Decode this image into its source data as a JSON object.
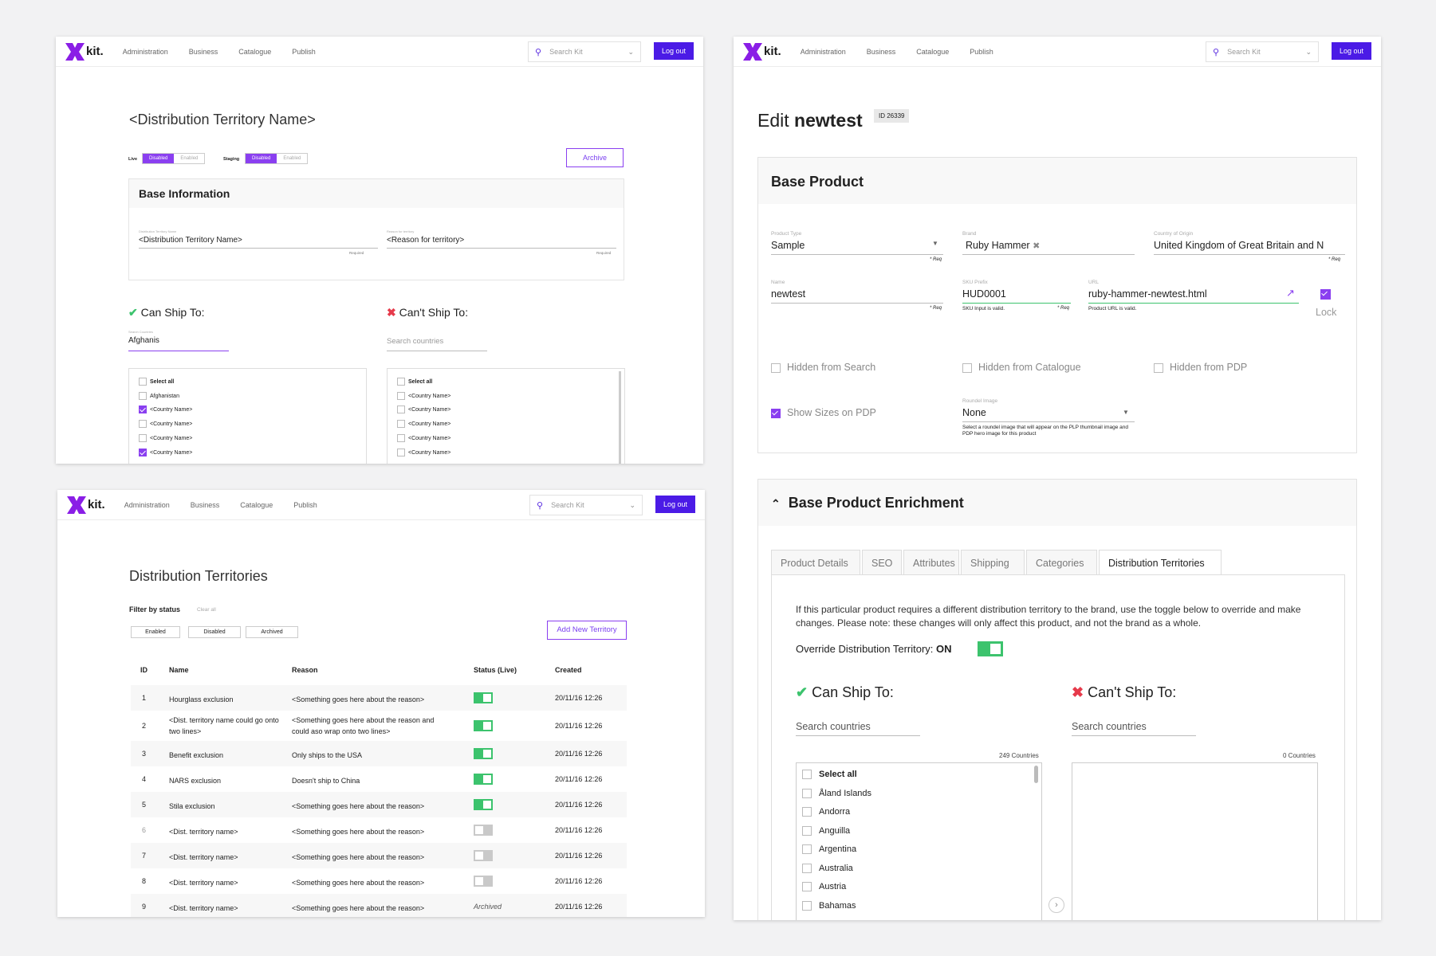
{
  "nav": {
    "logo": "kit.",
    "items": [
      "Administration",
      "Business",
      "Catalogue",
      "Publish"
    ],
    "search_placeholder": "Search Kit",
    "logout": "Log out"
  },
  "win1": {
    "title": "<Distribution Territory Name>",
    "live_label": "Live",
    "staging_label": "Staging",
    "disabled": "Disabled",
    "enabled": "Enabled",
    "archive_button": "Archive",
    "section_title": "Base Information",
    "field1_label": "Distribution Territory Name",
    "field1_value": "<Distribution Territory Name>",
    "field2_label": "Reason for territory",
    "field2_value": "<Reason for territory>",
    "required": "Required",
    "can_ship": "Can Ship To:",
    "cant_ship": "Can't Ship To:",
    "search_label": "Search Countries",
    "search_value": "Afghanis",
    "search_placeholder": "Search countries",
    "left_list": [
      {
        "label": "Select all",
        "checked": false
      },
      {
        "label": "Afghanistan",
        "checked": false
      },
      {
        "label": "<Country Name>",
        "checked": true
      },
      {
        "label": "<Country Name>",
        "checked": false
      },
      {
        "label": "<Country Name>",
        "checked": false
      },
      {
        "label": "<Country Name>",
        "checked": true
      }
    ],
    "right_list": [
      {
        "label": "Select all",
        "checked": false
      },
      {
        "label": "<Country Name>",
        "checked": false
      },
      {
        "label": "<Country Name>",
        "checked": false
      },
      {
        "label": "<Country Name>",
        "checked": false
      },
      {
        "label": "<Country Name>",
        "checked": false
      },
      {
        "label": "<Country Name>",
        "checked": false
      }
    ]
  },
  "win2": {
    "title": "Distribution Territories",
    "filter_label": "Filter by status",
    "clear_all": "Clear all",
    "filters": [
      "Enabled",
      "Disabled",
      "Archived"
    ],
    "add_button": "Add New Territory",
    "columns": [
      "ID",
      "Name",
      "Reason",
      "Status (Live)",
      "Created"
    ],
    "rows": [
      {
        "id": "1",
        "name": "Hourglass exclusion",
        "reason": "<Something goes here about the reason>",
        "status": "on",
        "created": "20/11/16 12:26"
      },
      {
        "id": "2",
        "name": "<Dist. territory name could go onto two lines>",
        "reason": "<Something goes here about the reason and could aso wrap onto two lines>",
        "status": "on",
        "created": "20/11/16 12:26"
      },
      {
        "id": "3",
        "name": "Benefit exclusion",
        "reason": "Only ships to the USA",
        "status": "on",
        "created": "20/11/16 12:26"
      },
      {
        "id": "4",
        "name": "NARS exclusion",
        "reason": "Doesn't ship to China",
        "status": "on",
        "created": "20/11/16 12:26"
      },
      {
        "id": "5",
        "name": "Stila exclusion",
        "reason": "<Something goes here about the reason>",
        "status": "on",
        "created": "20/11/16 12:26"
      },
      {
        "id": "6",
        "name": "<Dist. territory name>",
        "reason": "<Something goes here about the reason>",
        "status": "off",
        "created": "20/11/16 12:26"
      },
      {
        "id": "7",
        "name": "<Dist. territory name>",
        "reason": "<Something goes here about the reason>",
        "status": "off",
        "created": "20/11/16 12:26"
      },
      {
        "id": "8",
        "name": "<Dist. territory name>",
        "reason": "<Something goes here about the reason>",
        "status": "off",
        "created": "20/11/16 12:26"
      },
      {
        "id": "9",
        "name": "<Dist. territory name>",
        "reason": "<Something goes here about the reason>",
        "status": "Archived",
        "created": "20/11/16 12:26"
      }
    ]
  },
  "win3": {
    "title_prefix": "Edit ",
    "title_name": "newtest",
    "id_badge": "ID 26339",
    "base_title": "Base Product",
    "product_type_label": "Product Type",
    "product_type": "Sample",
    "brand_label": "Brand",
    "brand": "Ruby Hammer",
    "country_label": "Country of Origin",
    "country": "United Kingdom of Great Britain and N",
    "req": "* Req",
    "name_label": "Name",
    "name": "newtest",
    "sku_label": "SKU Prefix",
    "sku": "HUD0001",
    "sku_help": "SKU Input is valid.",
    "url_label": "URL",
    "url": "ruby-hammer-newtest.html",
    "url_help": "Product URL is valid.",
    "lock": "Lock",
    "hidden_search": "Hidden from Search",
    "hidden_catalogue": "Hidden from Catalogue",
    "hidden_pdp": "Hidden from PDP",
    "show_sizes": "Show Sizes on PDP",
    "roundel_label": "Roundel Image",
    "roundel": "None",
    "roundel_help": "Select a roundel image that will appear on the PLP thumbnail image and PDP hero image for this product",
    "enrich_title": "Base Product Enrichment",
    "tabs": [
      "Product Details",
      "SEO",
      "Attributes",
      "Shipping",
      "Categories",
      "Distribution Territories"
    ],
    "desc": "If this particular product requires a different distribution territory to the brand, use the toggle below to override and make changes. Please note: these changes will only affect this product, and not the brand as a whole.",
    "override_label": "Override Distribution Territory:",
    "override_value": "ON",
    "can_ship": "Can Ship To:",
    "cant_ship": "Can't Ship To:",
    "search_placeholder": "Search countries",
    "left_count": "249 Countries",
    "right_count": "0 Countries",
    "countries": [
      "Select all",
      "Åland Islands",
      "Andorra",
      "Anguilla",
      "Argentina",
      "Australia",
      "Austria",
      "Bahamas"
    ]
  }
}
